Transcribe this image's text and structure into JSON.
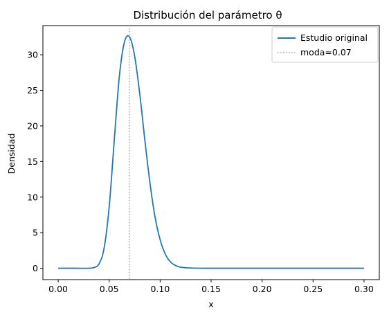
{
  "chart_data": {
    "type": "line",
    "title": "Distribución del parámetro θ",
    "xlabel": "x",
    "ylabel": "Densidad",
    "xlim": [
      -0.015,
      0.315
    ],
    "ylim": [
      -1.6,
      34.1
    ],
    "xticks": [
      0.0,
      0.05,
      0.1,
      0.15,
      0.2,
      0.25,
      0.3
    ],
    "xtick_labels": [
      "0.00",
      "0.05",
      "0.10",
      "0.15",
      "0.20",
      "0.25",
      "0.30"
    ],
    "yticks": [
      0,
      5,
      10,
      15,
      20,
      25,
      30
    ],
    "ytick_labels": [
      "0",
      "5",
      "10",
      "15",
      "20",
      "25",
      "30"
    ],
    "grid": false,
    "legend": {
      "position": "top-right"
    },
    "series": [
      {
        "name": "Estudio original",
        "color": "#1f77b4",
        "style": "solid",
        "x": [
          0.0,
          0.01,
          0.02,
          0.03,
          0.035,
          0.04,
          0.045,
          0.05,
          0.055,
          0.06,
          0.065,
          0.07,
          0.075,
          0.08,
          0.085,
          0.09,
          0.095,
          0.1,
          0.105,
          0.11,
          0.115,
          0.12,
          0.13,
          0.15,
          0.2,
          0.25,
          0.3
        ],
        "y": [
          0.0,
          0.0,
          0.0,
          0.0,
          0.1,
          0.6,
          2.8,
          8.6,
          18.0,
          27.0,
          31.8,
          32.5,
          29.8,
          24.5,
          18.0,
          12.0,
          7.2,
          4.0,
          2.0,
          0.9,
          0.4,
          0.15,
          0.03,
          0.0,
          0.0,
          0.0,
          0.0
        ]
      }
    ],
    "vlines": [
      {
        "name": "moda=0.07",
        "x": 0.07,
        "color": "#a9a9a9",
        "style": "dotted"
      }
    ]
  }
}
